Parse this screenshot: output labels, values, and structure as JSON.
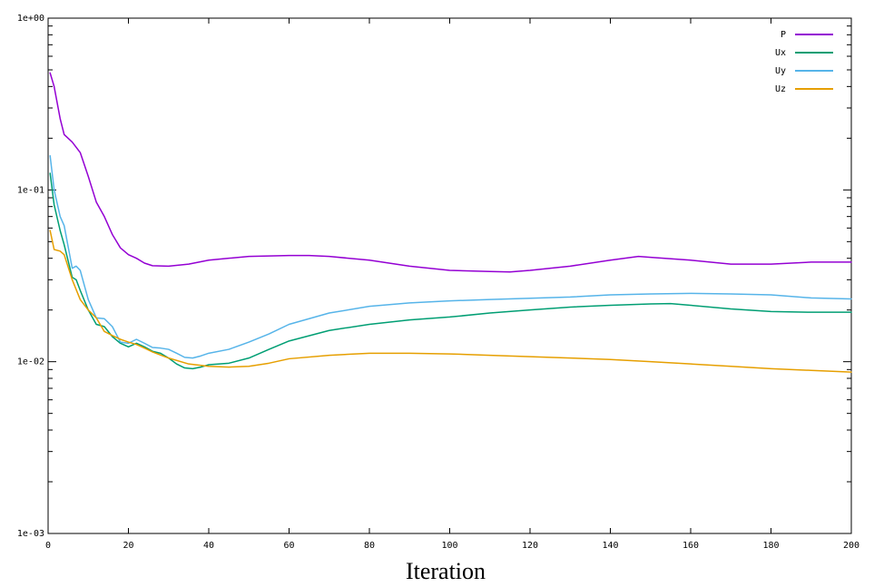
{
  "chart_data": {
    "type": "line",
    "title": "",
    "xlabel": "Iteration",
    "ylabel": "",
    "xlim": [
      0,
      200
    ],
    "ylim": [
      0.001,
      1
    ],
    "yscale": "log",
    "grid": false,
    "legend_position": "top-right",
    "x_ticks": [
      0,
      20,
      40,
      60,
      80,
      100,
      120,
      140,
      160,
      180,
      200
    ],
    "x_tick_labels": [
      "0",
      "20",
      "40",
      "60",
      "80",
      "100",
      "120",
      "140",
      "160",
      "180",
      "200"
    ],
    "y_ticks": [
      0.001,
      0.01,
      0.1,
      1
    ],
    "y_tick_labels": [
      "1e-03",
      "1e-02",
      "1e-01",
      "1e+00"
    ],
    "series": [
      {
        "name": "P",
        "color": "#9400d3",
        "points": [
          [
            0.5,
            0.48
          ],
          [
            1.5,
            0.4
          ],
          [
            3,
            0.26
          ],
          [
            4,
            0.21
          ],
          [
            6,
            0.19
          ],
          [
            8,
            0.165
          ],
          [
            10,
            0.12
          ],
          [
            12,
            0.085
          ],
          [
            14,
            0.07
          ],
          [
            16,
            0.055
          ],
          [
            18,
            0.046
          ],
          [
            20,
            0.042
          ],
          [
            22,
            0.04
          ],
          [
            24,
            0.0375
          ],
          [
            26,
            0.0362
          ],
          [
            30,
            0.036
          ],
          [
            35,
            0.037
          ],
          [
            40,
            0.039
          ],
          [
            45,
            0.04
          ],
          [
            50,
            0.041
          ],
          [
            60,
            0.0415
          ],
          [
            65,
            0.0415
          ],
          [
            70,
            0.041
          ],
          [
            80,
            0.039
          ],
          [
            90,
            0.036
          ],
          [
            100,
            0.034
          ],
          [
            110,
            0.0335
          ],
          [
            115,
            0.0333
          ],
          [
            120,
            0.034
          ],
          [
            130,
            0.036
          ],
          [
            140,
            0.039
          ],
          [
            147,
            0.041
          ],
          [
            150,
            0.0405
          ],
          [
            160,
            0.039
          ],
          [
            170,
            0.037
          ],
          [
            180,
            0.037
          ],
          [
            190,
            0.038
          ],
          [
            200,
            0.038
          ]
        ]
      },
      {
        "name": "Ux",
        "color": "#009e73",
        "points": [
          [
            0.5,
            0.125
          ],
          [
            1.5,
            0.082
          ],
          [
            3,
            0.058
          ],
          [
            4,
            0.048
          ],
          [
            6,
            0.031
          ],
          [
            7,
            0.03
          ],
          [
            8,
            0.026
          ],
          [
            10,
            0.02
          ],
          [
            12,
            0.0165
          ],
          [
            14,
            0.016
          ],
          [
            16,
            0.014
          ],
          [
            18,
            0.0128
          ],
          [
            20,
            0.0122
          ],
          [
            22,
            0.0128
          ],
          [
            24,
            0.0122
          ],
          [
            26,
            0.0115
          ],
          [
            28,
            0.0112
          ],
          [
            30,
            0.0105
          ],
          [
            32,
            0.0097
          ],
          [
            34,
            0.0092
          ],
          [
            36,
            0.0091
          ],
          [
            38,
            0.0093
          ],
          [
            40,
            0.0096
          ],
          [
            45,
            0.0098
          ],
          [
            50,
            0.0105
          ],
          [
            55,
            0.0118
          ],
          [
            60,
            0.0132
          ],
          [
            70,
            0.0152
          ],
          [
            80,
            0.0165
          ],
          [
            90,
            0.0175
          ],
          [
            100,
            0.0182
          ],
          [
            110,
            0.0192
          ],
          [
            120,
            0.02
          ],
          [
            130,
            0.0208
          ],
          [
            140,
            0.0213
          ],
          [
            150,
            0.0217
          ],
          [
            155,
            0.0218
          ],
          [
            160,
            0.0213
          ],
          [
            170,
            0.0203
          ],
          [
            180,
            0.0196
          ],
          [
            190,
            0.0194
          ],
          [
            200,
            0.0194
          ]
        ]
      },
      {
        "name": "Uy",
        "color": "#56b4e9",
        "points": [
          [
            0.5,
            0.158
          ],
          [
            1.5,
            0.1
          ],
          [
            3,
            0.07
          ],
          [
            4,
            0.062
          ],
          [
            6,
            0.035
          ],
          [
            7,
            0.036
          ],
          [
            8,
            0.034
          ],
          [
            10,
            0.023
          ],
          [
            12,
            0.018
          ],
          [
            14,
            0.0178
          ],
          [
            16,
            0.016
          ],
          [
            18,
            0.013
          ],
          [
            20,
            0.0128
          ],
          [
            22,
            0.0135
          ],
          [
            24,
            0.0128
          ],
          [
            26,
            0.0121
          ],
          [
            28,
            0.012
          ],
          [
            30,
            0.0118
          ],
          [
            32,
            0.0112
          ],
          [
            34,
            0.0106
          ],
          [
            36,
            0.0105
          ],
          [
            38,
            0.0108
          ],
          [
            40,
            0.0112
          ],
          [
            45,
            0.0118
          ],
          [
            50,
            0.013
          ],
          [
            55,
            0.0145
          ],
          [
            60,
            0.0165
          ],
          [
            70,
            0.0192
          ],
          [
            80,
            0.021
          ],
          [
            90,
            0.022
          ],
          [
            100,
            0.0226
          ],
          [
            110,
            0.023
          ],
          [
            120,
            0.0234
          ],
          [
            130,
            0.0238
          ],
          [
            140,
            0.0245
          ],
          [
            150,
            0.0248
          ],
          [
            160,
            0.025
          ],
          [
            170,
            0.0248
          ],
          [
            180,
            0.0245
          ],
          [
            190,
            0.0235
          ],
          [
            200,
            0.0232
          ]
        ]
      },
      {
        "name": "Uz",
        "color": "#e69f00",
        "points": [
          [
            0.5,
            0.058
          ],
          [
            1.5,
            0.045
          ],
          [
            3,
            0.044
          ],
          [
            4,
            0.042
          ],
          [
            6,
            0.03
          ],
          [
            8,
            0.023
          ],
          [
            10,
            0.02
          ],
          [
            12,
            0.018
          ],
          [
            14,
            0.015
          ],
          [
            16,
            0.0142
          ],
          [
            18,
            0.0135
          ],
          [
            20,
            0.013
          ],
          [
            22,
            0.0126
          ],
          [
            24,
            0.012
          ],
          [
            26,
            0.0114
          ],
          [
            30,
            0.0105
          ],
          [
            35,
            0.0097
          ],
          [
            40,
            0.0094
          ],
          [
            45,
            0.0093
          ],
          [
            50,
            0.0094
          ],
          [
            55,
            0.0098
          ],
          [
            60,
            0.0104
          ],
          [
            70,
            0.0109
          ],
          [
            80,
            0.0112
          ],
          [
            90,
            0.0112
          ],
          [
            100,
            0.0111
          ],
          [
            110,
            0.0109
          ],
          [
            120,
            0.0107
          ],
          [
            130,
            0.0105
          ],
          [
            140,
            0.0103
          ],
          [
            150,
            0.01
          ],
          [
            160,
            0.0097
          ],
          [
            170,
            0.0094
          ],
          [
            180,
            0.0091
          ],
          [
            190,
            0.0089
          ],
          [
            200,
            0.0087
          ]
        ]
      }
    ]
  }
}
